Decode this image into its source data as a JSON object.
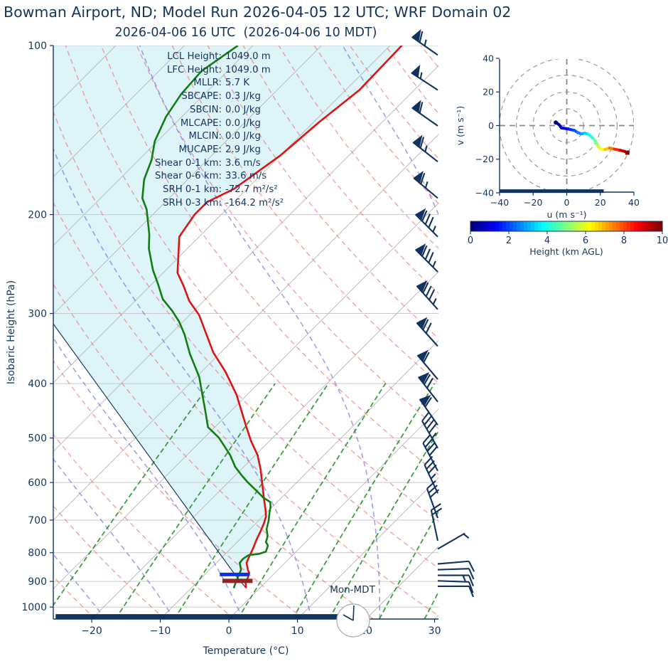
{
  "title": "Bowman Airport, ND; Model Run 2026-04-05 12 UTC; WRF Domain 02",
  "subtitle": "2026-04-06 16 UTC  (2026-04-06 10 MDT)",
  "skewt": {
    "xlabel": "Temperature (°C)",
    "ylabel": "Isobaric Height (hPa)",
    "x_ticks": [
      -20,
      -10,
      0,
      10,
      20,
      30
    ],
    "y_ticks": [
      100,
      200,
      300,
      400,
      500,
      600,
      700,
      800,
      900,
      1000
    ],
    "clock_label": "Mon-MDT",
    "annotations": [
      {
        "label": "LCL Height:",
        "value": "1049.0 m"
      },
      {
        "label": "LFC Height:",
        "value": "1049.0 m"
      },
      {
        "label": "MLLR:",
        "value": "5.7 K"
      },
      {
        "label": "SBCAPE:",
        "value": "0.3 J/kg"
      },
      {
        "label": "SBCIN:",
        "value": "0.0 J/kg"
      },
      {
        "label": "MLCAPE:",
        "value": "0.0 J/kg"
      },
      {
        "label": "MLCIN:",
        "value": "0.0 J/kg"
      },
      {
        "label": "MUCAPE:",
        "value": "2.9 J/kg"
      },
      {
        "label": "Shear 0-1 km:",
        "value": "3.6 m/s"
      },
      {
        "label": "Shear 0-6 km:",
        "value": "33.6 m/s"
      },
      {
        "label": "SRH 0-1 km:",
        "value": "-72.7 m²/s²"
      },
      {
        "label": "SRH 0-3 km:",
        "value": "-164.2 m²/s²"
      }
    ]
  },
  "hodograph": {
    "xlabel": "u (m s⁻¹)",
    "ylabel": "v (m s⁻¹)",
    "x_ticks": [
      -40,
      -20,
      0,
      20,
      40
    ],
    "y_ticks": [
      -40,
      -20,
      0,
      20,
      40
    ],
    "ring_radii": [
      10,
      20,
      30,
      40
    ]
  },
  "colorbar": {
    "label": "Height (km AGL)",
    "ticks": [
      0,
      2,
      4,
      6,
      8,
      10
    ],
    "colormap": "jet",
    "range_km": [
      0,
      10
    ]
  },
  "colors": {
    "text_navy": "#16355d",
    "temperature": "#e01212",
    "dewpoint": "#127d12",
    "parcel": "#1c3a66",
    "shading": "rgba(180,230,242,0.45)",
    "dry_adiabat": "rgba(240,100,100,0.6)",
    "moist_adiabat": "rgba(110,110,225,0.65)",
    "mixing_line": "rgba(30,140,30,0.85)",
    "isotherm_gray": "#b6b6b6",
    "isobar_gray": "#c9c9c9",
    "blue_marker": "#0b2fe3",
    "darkred_marker": "#8c2726",
    "baseline_bar": "#12325e",
    "barb": "#12325e"
  },
  "chart_data": {
    "type": "line",
    "variant": "skew-t-log-p sounding with hodograph inset",
    "x_axis": {
      "label": "Temperature (°C)",
      "ticks": [
        -20,
        -10,
        0,
        10,
        20,
        30
      ],
      "range": [
        -25.6,
        30.6
      ],
      "skew_deg": 45
    },
    "y_axis": {
      "label": "Isobaric Height (hPa)",
      "scale": "log",
      "range_hpa": [
        1050,
        100
      ],
      "ticks": [
        100,
        200,
        300,
        400,
        500,
        600,
        700,
        800,
        900,
        1000
      ]
    },
    "series": [
      {
        "name": "temperature_C_vs_hPa",
        "points": [
          [
            100,
            -58.3
          ],
          [
            120,
            -58.0
          ],
          [
            137,
            -59.2
          ],
          [
            157,
            -60.0
          ],
          [
            180,
            -61.9
          ],
          [
            190,
            -63.9
          ],
          [
            200,
            -63.9
          ],
          [
            219,
            -62.9
          ],
          [
            254,
            -57.9
          ],
          [
            268,
            -55.1
          ],
          [
            285,
            -52.1
          ],
          [
            302,
            -48.6
          ],
          [
            352,
            -41.1
          ],
          [
            381,
            -36.5
          ],
          [
            419,
            -31.5
          ],
          [
            478,
            -25.4
          ],
          [
            506,
            -22.7
          ],
          [
            536,
            -19.7
          ],
          [
            568,
            -17.2
          ],
          [
            605,
            -14.7
          ],
          [
            638,
            -12.6
          ],
          [
            672,
            -10.5
          ],
          [
            690,
            -9.5
          ],
          [
            710,
            -8.8
          ],
          [
            731,
            -8.2
          ],
          [
            759,
            -7.5
          ],
          [
            788,
            -6.7
          ],
          [
            818,
            -6.0
          ],
          [
            834,
            -5.6
          ],
          [
            858,
            -4.4
          ],
          [
            870,
            -3.7
          ],
          [
            888,
            -3.2
          ],
          [
            901,
            -3.0
          ],
          [
            925,
            -2.0
          ]
        ]
      },
      {
        "name": "dewpoint_C_vs_hPa",
        "points": [
          [
            100,
            -82.2
          ],
          [
            111,
            -83.8
          ],
          [
            122,
            -83.4
          ],
          [
            134,
            -82.3
          ],
          [
            148,
            -80.4
          ],
          [
            160,
            -78.1
          ],
          [
            173,
            -76.4
          ],
          [
            187,
            -73.9
          ],
          [
            196,
            -71.6
          ],
          [
            217,
            -67.6
          ],
          [
            230,
            -65.6
          ],
          [
            251,
            -61.9
          ],
          [
            266,
            -59.1
          ],
          [
            283,
            -56.2
          ],
          [
            297,
            -53.1
          ],
          [
            310,
            -50.6
          ],
          [
            327,
            -47.9
          ],
          [
            354,
            -44.3
          ],
          [
            389,
            -39.6
          ],
          [
            429,
            -35.5
          ],
          [
            451,
            -33.4
          ],
          [
            478,
            -31.0
          ],
          [
            499,
            -27.9
          ],
          [
            518,
            -25.7
          ],
          [
            536,
            -23.7
          ],
          [
            563,
            -21.2
          ],
          [
            584,
            -18.9
          ],
          [
            600,
            -17.1
          ],
          [
            621,
            -14.6
          ],
          [
            638,
            -12.7
          ],
          [
            650,
            -11.0
          ],
          [
            664,
            -10.2
          ],
          [
            674,
            -9.8
          ],
          [
            702,
            -8.5
          ],
          [
            726,
            -7.6
          ],
          [
            748,
            -6.4
          ],
          [
            766,
            -5.8
          ],
          [
            777,
            -5.0
          ],
          [
            797,
            -4.4
          ],
          [
            804,
            -5.1
          ],
          [
            808,
            -6.4
          ],
          [
            820,
            -6.7
          ],
          [
            834,
            -6.6
          ],
          [
            858,
            -5.4
          ],
          [
            883,
            -4.8
          ],
          [
            901,
            -4.4
          ],
          [
            925,
            -3.8
          ]
        ]
      },
      {
        "name": "parcel_profile_C_vs_hPa",
        "points": [
          [
            300,
            -71.0
          ],
          [
            313,
            -68.6
          ],
          [
            875,
            -5.6
          ],
          [
            925,
            -2.0
          ]
        ]
      }
    ],
    "level_markers": [
      {
        "name": "blue_bar",
        "p_hpa": 875,
        "T_from": -7.8,
        "T_to": -3.5
      },
      {
        "name": "darkred_bar",
        "p_hpa": 898,
        "T_from": -6.5,
        "T_to": -2.1
      },
      {
        "name": "surface_bar",
        "p_hpa": 1040,
        "T_from": -25.6,
        "T_to": 16.4
      }
    ],
    "wind_barbs": [
      {
        "p": 104,
        "dir_deg": 305,
        "speed_kt": 65
      },
      {
        "p": 120,
        "dir_deg": 303,
        "speed_kt": 55
      },
      {
        "p": 139,
        "dir_deg": 305,
        "speed_kt": 60
      },
      {
        "p": 161,
        "dir_deg": 308,
        "speed_kt": 65
      },
      {
        "p": 187,
        "dir_deg": 310,
        "speed_kt": 65
      },
      {
        "p": 219,
        "dir_deg": 315,
        "speed_kt": 85
      },
      {
        "p": 253,
        "dir_deg": 315,
        "speed_kt": 85
      },
      {
        "p": 295,
        "dir_deg": 318,
        "speed_kt": 85
      },
      {
        "p": 343,
        "dir_deg": 318,
        "speed_kt": 70
      },
      {
        "p": 393,
        "dir_deg": 320,
        "speed_kt": 60
      },
      {
        "p": 431,
        "dir_deg": 322,
        "speed_kt": 70
      },
      {
        "p": 474,
        "dir_deg": 325,
        "speed_kt": 60
      },
      {
        "p": 521,
        "dir_deg": 330,
        "speed_kt": 45
      },
      {
        "p": 572,
        "dir_deg": 332,
        "speed_kt": 40
      },
      {
        "p": 627,
        "dir_deg": 335,
        "speed_kt": 35
      },
      {
        "p": 694,
        "dir_deg": 340,
        "speed_kt": 30
      },
      {
        "p": 762,
        "dir_deg": 348,
        "speed_kt": 20
      },
      {
        "p": 788,
        "dir_deg": 60,
        "speed_kt": 5
      },
      {
        "p": 838,
        "dir_deg": 85,
        "speed_kt": 10
      },
      {
        "p": 858,
        "dir_deg": 88,
        "speed_kt": 12
      },
      {
        "p": 878,
        "dir_deg": 90,
        "speed_kt": 15
      },
      {
        "p": 898,
        "dir_deg": 92,
        "speed_kt": 12
      },
      {
        "p": 918,
        "dir_deg": 90,
        "speed_kt": 10
      }
    ],
    "hodograph_trace_u_v_heightkm": [
      [
        -6.5,
        1.8,
        0.05
      ],
      [
        -5.5,
        1.2,
        0.2
      ],
      [
        -4.5,
        0.5,
        0.4
      ],
      [
        -3.2,
        -1.4,
        0.7
      ],
      [
        -1.8,
        -1.6,
        0.9
      ],
      [
        -0.4,
        -1.8,
        1.1
      ],
      [
        1.0,
        -2.0,
        1.3
      ],
      [
        2.4,
        -2.4,
        1.6
      ],
      [
        4.5,
        -2.8,
        1.9
      ],
      [
        6.6,
        -4.2,
        2.3
      ],
      [
        8.7,
        -4.9,
        2.7
      ],
      [
        10.8,
        -4.5,
        3.1
      ],
      [
        12.9,
        -5.2,
        3.6
      ],
      [
        14.6,
        -6.6,
        4.0
      ],
      [
        16.4,
        -8.4,
        4.5
      ],
      [
        17.8,
        -10.5,
        5.0
      ],
      [
        18.8,
        -12.6,
        5.5
      ],
      [
        20.2,
        -14.0,
        6.0
      ],
      [
        22.7,
        -14.3,
        6.5
      ],
      [
        25.5,
        -13.3,
        7.2
      ],
      [
        28.4,
        -14.0,
        8.0
      ],
      [
        31.9,
        -14.7,
        8.8
      ],
      [
        34.7,
        -15.4,
        9.5
      ],
      [
        36.1,
        -16.1,
        10.0
      ]
    ],
    "hodograph_ground_bar": {
      "v": -39,
      "u_from": -40,
      "u_to": 22
    },
    "grid": {
      "isotherms_C": {
        "from": -120,
        "to": 40,
        "step": 10
      },
      "dry_adiabats_C": {
        "from": -63,
        "to": 147,
        "step": 10
      },
      "moist_adiabats_C": {
        "from": -58,
        "to": 42,
        "step": 10
      },
      "mixing_ratio_g_kg": [
        0.4,
        1,
        2,
        4,
        7,
        10,
        16,
        24,
        32
      ]
    }
  }
}
